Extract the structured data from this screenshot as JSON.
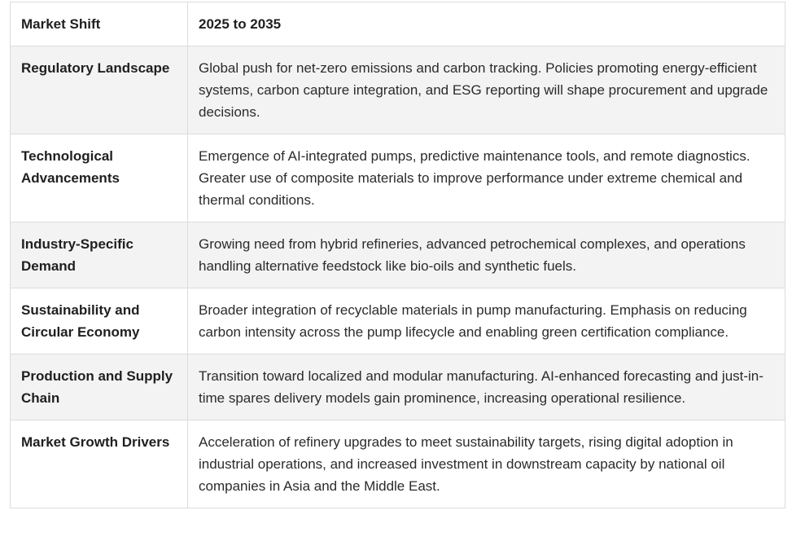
{
  "table": {
    "headers": [
      "Market Shift",
      "2025 to 2035"
    ],
    "rows": [
      {
        "shift": "Regulatory Landscape",
        "outlook": "Global push for net-zero emissions and carbon tracking. Policies promoting energy-efficient systems, carbon capture integration, and ESG reporting will shape procurement and upgrade decisions."
      },
      {
        "shift": "Technological Advancements",
        "outlook": "Emergence of AI-integrated pumps, predictive maintenance tools, and remote diagnostics. Greater use of composite materials to improve performance under extreme chemical and thermal conditions."
      },
      {
        "shift": "Industry-Specific Demand",
        "outlook": "Growing need from hybrid refineries, advanced petrochemical complexes, and operations handling alternative feedstock like bio-oils and synthetic fuels."
      },
      {
        "shift": "Sustainability and Circular Economy",
        "outlook": "Broader integration of recyclable materials in pump manufacturing. Emphasis on reducing carbon intensity across the pump lifecycle and enabling green certification compliance."
      },
      {
        "shift": "Production and Supply Chain",
        "outlook": "Transition toward localized and modular manufacturing. AI-enhanced forecasting and just-in-time spares delivery models gain prominence, increasing operational resilience."
      },
      {
        "shift": "Market Growth Drivers",
        "outlook": "Acceleration of refinery upgrades to meet sustainability targets, rising digital adoption in industrial operations, and increased investment in downstream capacity by national oil companies in Asia and the Middle East."
      }
    ]
  }
}
